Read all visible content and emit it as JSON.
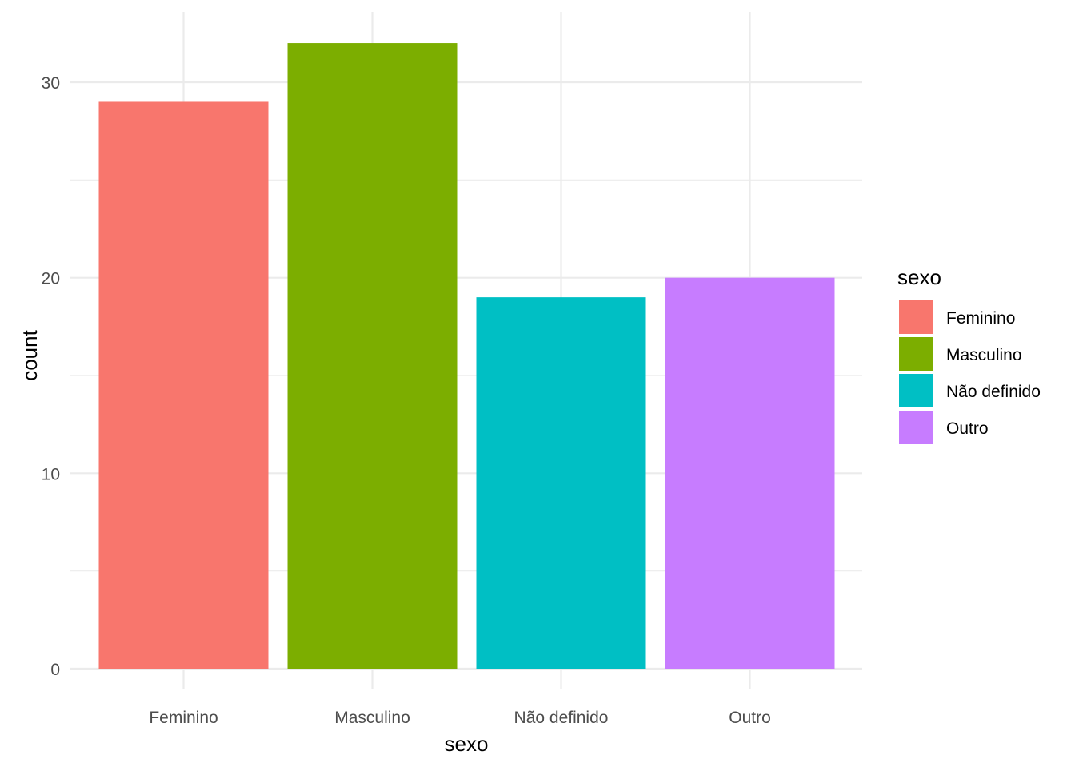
{
  "chart_data": {
    "type": "bar",
    "categories": [
      "Feminino",
      "Masculino",
      "Não definido",
      "Outro"
    ],
    "values": [
      29,
      32,
      19,
      20
    ],
    "colors": [
      "#F8766D",
      "#7CAE00",
      "#00BFC4",
      "#C77CFF"
    ],
    "xlabel": "sexo",
    "ylabel": "count",
    "ylim": [
      0,
      33.6
    ],
    "yticks": [
      0,
      10,
      20,
      30
    ],
    "ytick_labels": [
      "0",
      "10",
      "20",
      "30"
    ],
    "grid": true,
    "legend": {
      "title": "sexo",
      "placement": "right",
      "entries": [
        "Feminino",
        "Masculino",
        "Não definido",
        "Outro"
      ]
    }
  }
}
